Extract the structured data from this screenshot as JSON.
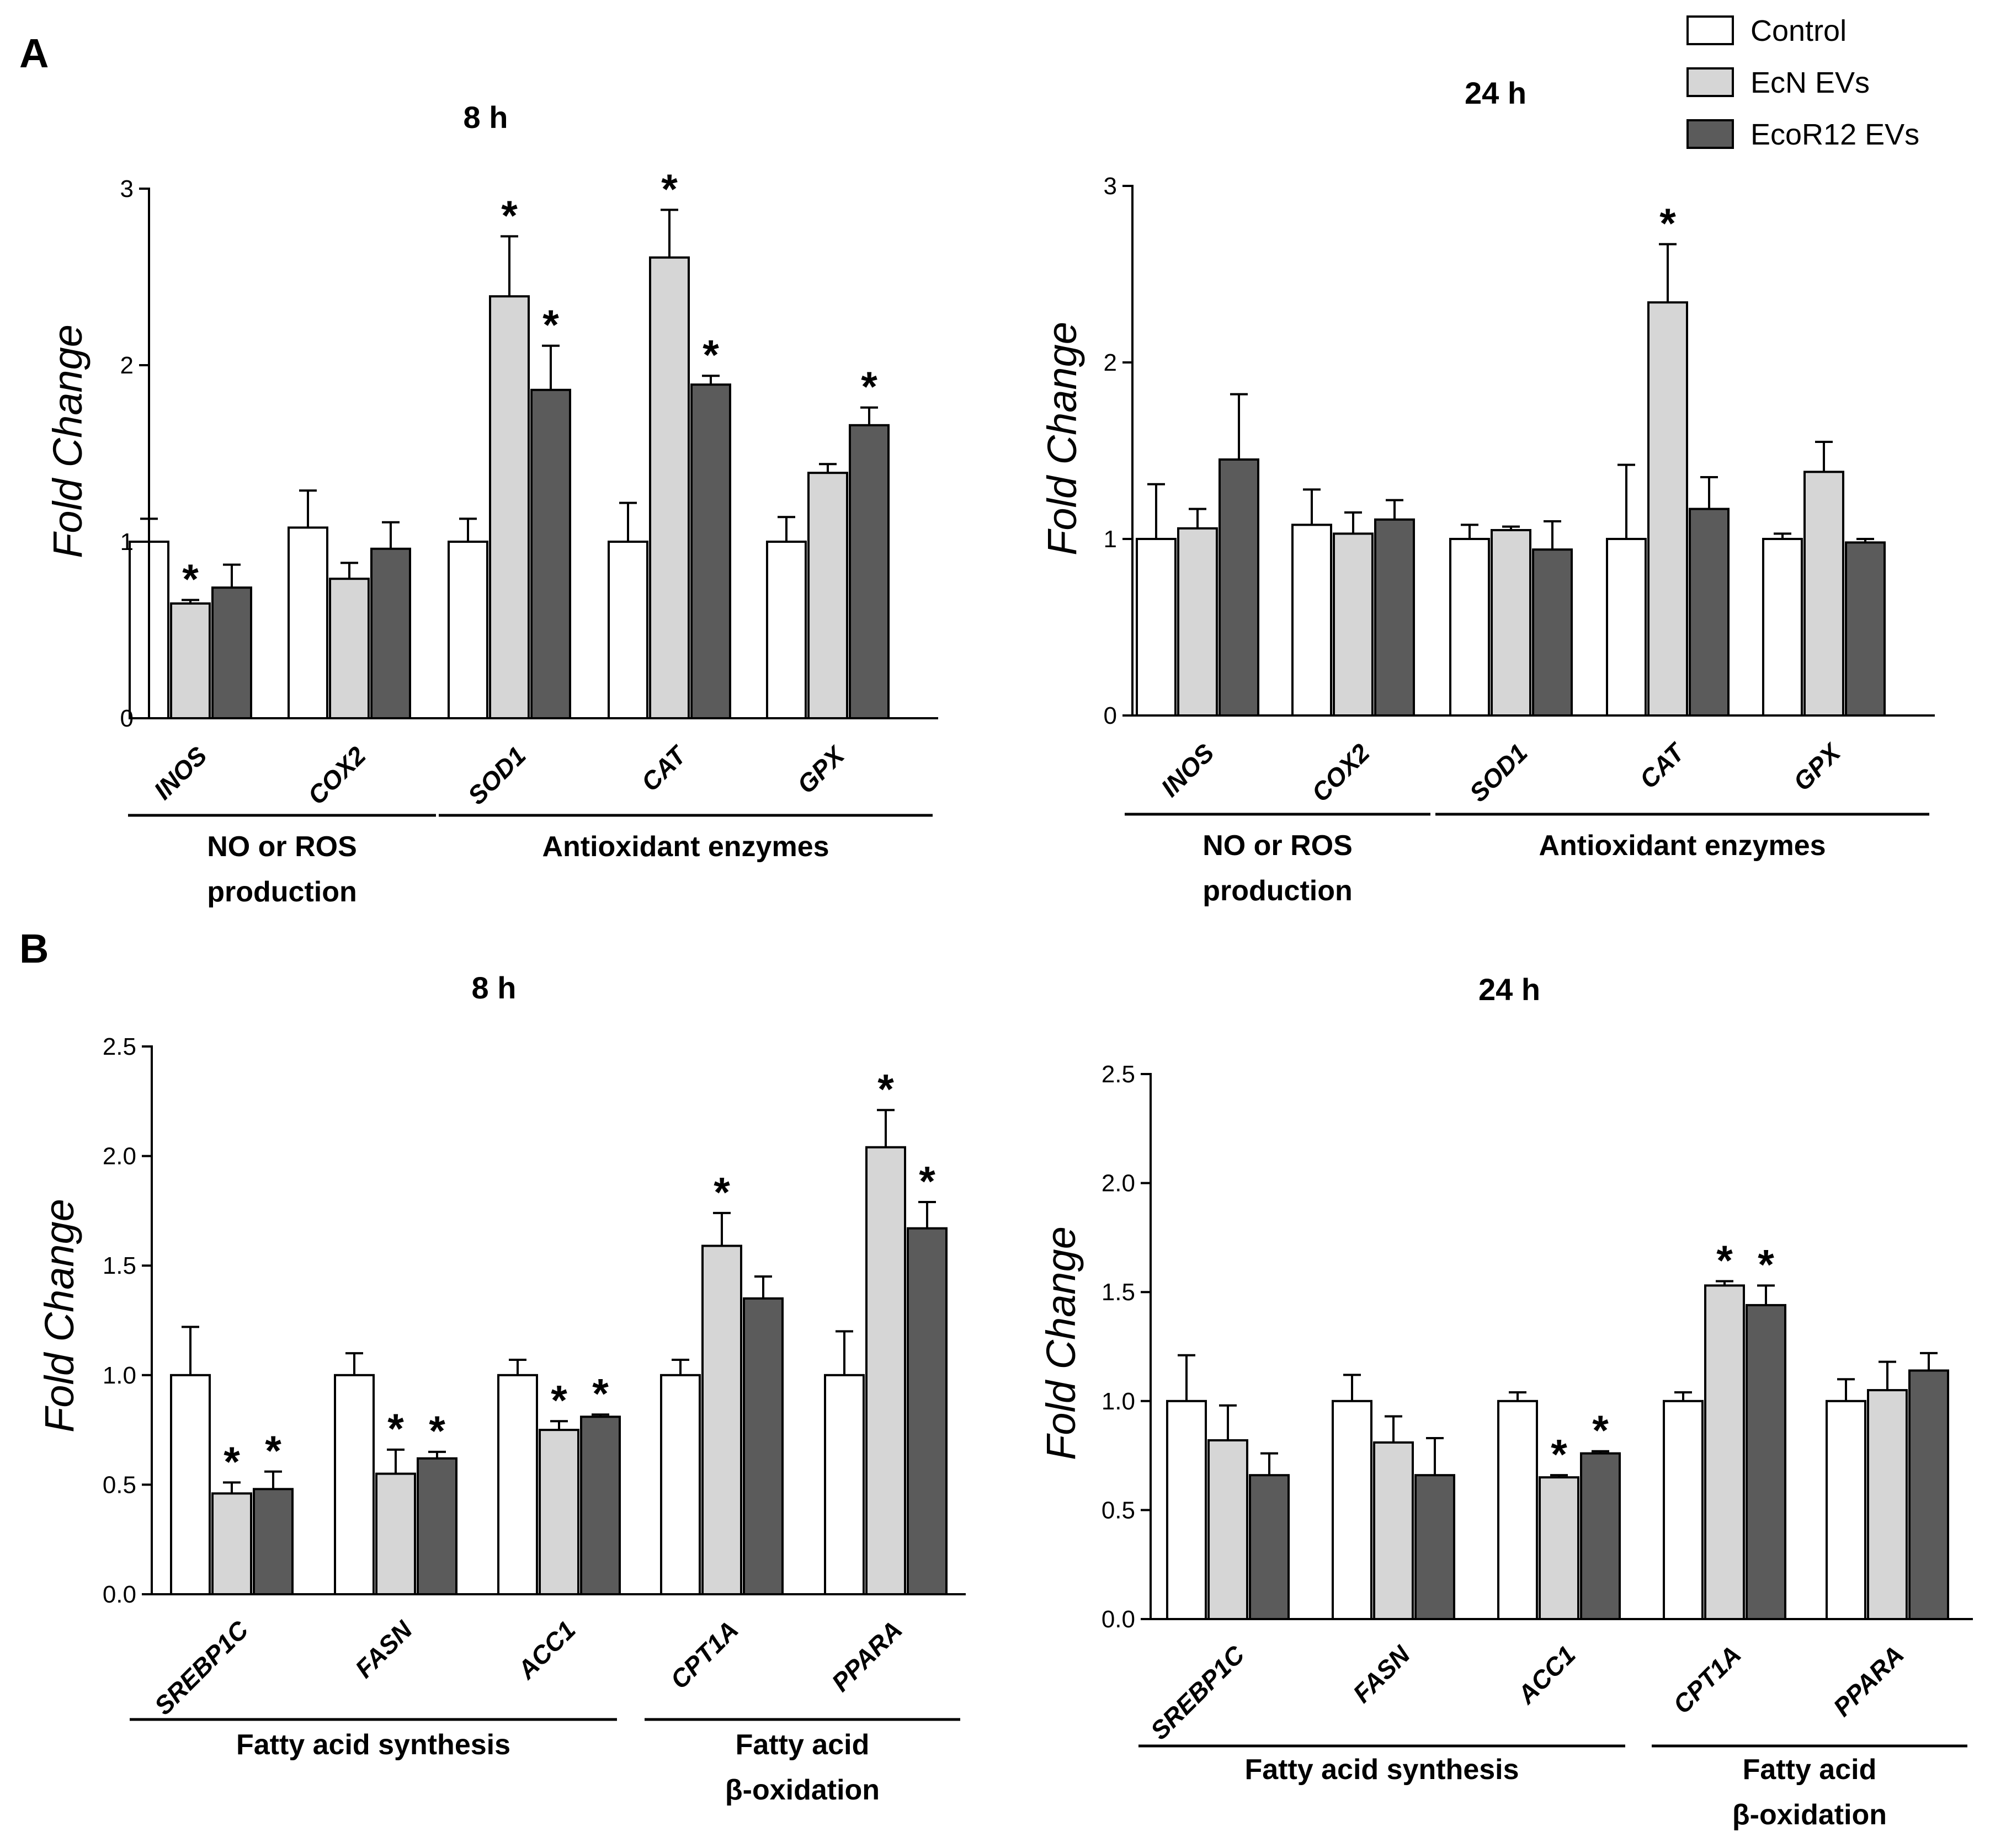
{
  "panels": [
    {
      "id": "A",
      "label": "A"
    },
    {
      "id": "B",
      "label": "B"
    }
  ],
  "legend": {
    "entries": [
      {
        "label": "Control",
        "color": "#ffffff"
      },
      {
        "label": "EcN EVs",
        "color": "#d6d6d6"
      },
      {
        "label": "EcoR12 EVs",
        "color": "#5b5b5b"
      }
    ]
  },
  "series_colors": [
    "#ffffff",
    "#d6d6d6",
    "#5b5b5b"
  ],
  "chart_data": [
    {
      "panel": "A",
      "type": "bar",
      "title": "8 h",
      "xlabel": "",
      "ylabel": "Fold Change",
      "ylim": [
        0,
        3
      ],
      "yticks": [
        "0",
        "1",
        "2",
        "3"
      ],
      "ytick_values": [
        0,
        1,
        2,
        3
      ],
      "categories": [
        "INOS",
        "COX2",
        "SOD1",
        "CAT",
        "GPX"
      ],
      "series": [
        {
          "name": "Control",
          "values": [
            1.0,
            1.08,
            1.0,
            1.0,
            1.0
          ],
          "errors": [
            0.13,
            0.21,
            0.13,
            0.22,
            0.14
          ],
          "significant": [
            false,
            false,
            false,
            false,
            false
          ]
        },
        {
          "name": "EcN EVs",
          "values": [
            0.65,
            0.79,
            2.39,
            2.61,
            1.39
          ],
          "errors": [
            0.02,
            0.09,
            0.34,
            0.27,
            0.05
          ],
          "significant": [
            true,
            false,
            true,
            true,
            false
          ]
        },
        {
          "name": "EcoR12 EVs",
          "values": [
            0.74,
            0.96,
            1.86,
            1.89,
            1.66
          ],
          "errors": [
            0.13,
            0.15,
            0.25,
            0.05,
            0.1
          ],
          "significant": [
            false,
            false,
            true,
            true,
            true
          ]
        }
      ],
      "groups": [
        {
          "label_lines": [
            "NO or ROS",
            "production"
          ],
          "categories": [
            "INOS",
            "COX2"
          ]
        },
        {
          "label_lines": [
            "Antioxidant enzymes"
          ],
          "categories": [
            "SOD1",
            "CAT",
            "GPX"
          ]
        }
      ],
      "significance_marker": "*"
    },
    {
      "panel": "A",
      "type": "bar",
      "title": "24 h",
      "xlabel": "",
      "ylabel": "Fold Change",
      "ylim": [
        0,
        3
      ],
      "yticks": [
        "0",
        "1",
        "2",
        "3"
      ],
      "ytick_values": [
        0,
        1,
        2,
        3
      ],
      "categories": [
        "INOS",
        "COX2",
        "SOD1",
        "CAT",
        "GPX"
      ],
      "series": [
        {
          "name": "Control",
          "values": [
            1.0,
            1.08,
            1.0,
            1.0,
            1.0
          ],
          "errors": [
            0.31,
            0.2,
            0.08,
            0.42,
            0.03
          ],
          "significant": [
            false,
            false,
            false,
            false,
            false
          ]
        },
        {
          "name": "EcN EVs",
          "values": [
            1.06,
            1.03,
            1.05,
            2.34,
            1.38
          ],
          "errors": [
            0.11,
            0.12,
            0.02,
            0.33,
            0.17
          ],
          "significant": [
            false,
            false,
            false,
            true,
            false
          ]
        },
        {
          "name": "EcoR12 EVs",
          "values": [
            1.45,
            1.11,
            0.94,
            1.17,
            0.98
          ],
          "errors": [
            0.37,
            0.11,
            0.16,
            0.18,
            0.02
          ],
          "significant": [
            false,
            false,
            false,
            false,
            false
          ]
        }
      ],
      "groups": [
        {
          "label_lines": [
            "NO or ROS",
            "production"
          ],
          "categories": [
            "INOS",
            "COX2"
          ]
        },
        {
          "label_lines": [
            "Antioxidant enzymes"
          ],
          "categories": [
            "SOD1",
            "CAT",
            "GPX"
          ]
        }
      ],
      "significance_marker": "*"
    },
    {
      "panel": "B",
      "type": "bar",
      "title": "8 h",
      "xlabel": "",
      "ylabel": "Fold Change",
      "ylim": [
        0,
        2.5
      ],
      "yticks": [
        "0.0",
        "0.5",
        "1.0",
        "1.5",
        "2.0",
        "2.5"
      ],
      "ytick_values": [
        0,
        0.5,
        1.0,
        1.5,
        2.0,
        2.5
      ],
      "categories": [
        "SREBP1C",
        "FASN",
        "ACC1",
        "CPT1A",
        "PPARA"
      ],
      "series": [
        {
          "name": "Control",
          "values": [
            1.0,
            1.0,
            1.0,
            1.0,
            1.0
          ],
          "errors": [
            0.22,
            0.1,
            0.07,
            0.07,
            0.2
          ],
          "significant": [
            false,
            false,
            false,
            false,
            false
          ]
        },
        {
          "name": "EcN EVs",
          "values": [
            0.46,
            0.55,
            0.75,
            1.59,
            2.04
          ],
          "errors": [
            0.05,
            0.11,
            0.04,
            0.15,
            0.17
          ],
          "significant": [
            true,
            true,
            true,
            true,
            true
          ]
        },
        {
          "name": "EcoR12 EVs",
          "values": [
            0.48,
            0.62,
            0.81,
            1.35,
            1.67
          ],
          "errors": [
            0.08,
            0.03,
            0.01,
            0.1,
            0.12
          ],
          "significant": [
            true,
            true,
            true,
            false,
            true
          ]
        }
      ],
      "groups": [
        {
          "label_lines": [
            "Fatty acid synthesis"
          ],
          "categories": [
            "SREBP1C",
            "FASN",
            "ACC1"
          ]
        },
        {
          "label_lines": [
            "Fatty acid",
            "β-oxidation"
          ],
          "categories": [
            "CPT1A",
            "PPARA"
          ]
        }
      ],
      "significance_marker": "*"
    },
    {
      "panel": "B",
      "type": "bar",
      "title": "24 h",
      "xlabel": "",
      "ylabel": "Fold Change",
      "ylim": [
        0,
        2.5
      ],
      "yticks": [
        "0.0",
        "0.5",
        "1.0",
        "1.5",
        "2.0",
        "2.5"
      ],
      "ytick_values": [
        0,
        0.5,
        1.0,
        1.5,
        2.0,
        2.5
      ],
      "categories": [
        "SREBP1C",
        "FASN",
        "ACC1",
        "CPT1A",
        "PPARA"
      ],
      "series": [
        {
          "name": "Control",
          "values": [
            1.0,
            1.0,
            1.0,
            1.0,
            1.0
          ],
          "errors": [
            0.21,
            0.12,
            0.04,
            0.04,
            0.1
          ],
          "significant": [
            false,
            false,
            false,
            false,
            false
          ]
        },
        {
          "name": "EcN EVs",
          "values": [
            0.82,
            0.81,
            0.65,
            1.53,
            1.05
          ],
          "errors": [
            0.16,
            0.12,
            0.01,
            0.02,
            0.13
          ],
          "significant": [
            false,
            false,
            true,
            true,
            false
          ]
        },
        {
          "name": "EcoR12 EVs",
          "values": [
            0.66,
            0.66,
            0.76,
            1.44,
            1.14
          ],
          "errors": [
            0.1,
            0.17,
            0.01,
            0.09,
            0.08
          ],
          "significant": [
            false,
            false,
            true,
            true,
            false
          ]
        }
      ],
      "groups": [
        {
          "label_lines": [
            "Fatty acid synthesis"
          ],
          "categories": [
            "SREBP1C",
            "FASN",
            "ACC1"
          ]
        },
        {
          "label_lines": [
            "Fatty acid",
            "β-oxidation"
          ],
          "categories": [
            "CPT1A",
            "PPARA"
          ]
        }
      ],
      "significance_marker": "*"
    }
  ]
}
